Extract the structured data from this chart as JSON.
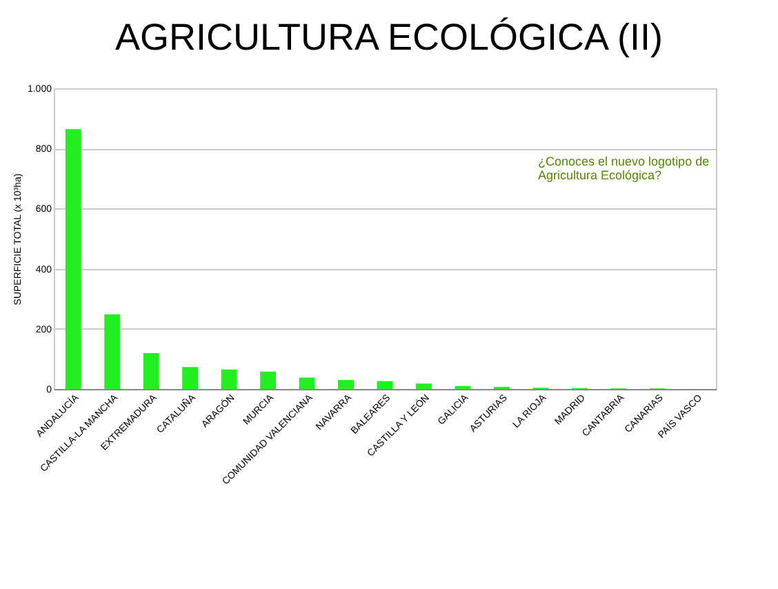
{
  "chart_data": {
    "type": "bar",
    "title": "AGRICULTURA ECOLÓGICA (II)",
    "ylabel": "SUPERFICIE TOTAL (x 10³ha)",
    "categories": [
      "ANDALUCÍA",
      "CASTILLA-LA MANCHA",
      "EXTREMADURA",
      "CATALUÑA",
      "ARAGÓN",
      "MURCIA",
      "COMUNIDAD VALENCIANA",
      "NAVARRA",
      "BALEARES",
      "CASTILLA Y LEÓN",
      "GALICIA",
      "ASTURIAS",
      "LA RIOJA",
      "MADRID",
      "CANTABRIA",
      "CANARIAS",
      "PAÍS VASCO"
    ],
    "values": [
      864,
      248,
      119,
      73,
      65,
      58,
      38,
      30,
      26,
      18,
      10,
      7,
      4,
      3,
      2,
      2,
      null
    ],
    "color": "#22ee22",
    "ylim": [
      0,
      1000
    ],
    "yticks": [
      0,
      200,
      400,
      600,
      800,
      {
        "value": 1000,
        "label": "1.000"
      }
    ],
    "grid": "y",
    "annotations": [
      "¿Conoces el nuevo logotipo de Agricultura Ecológica?"
    ]
  }
}
